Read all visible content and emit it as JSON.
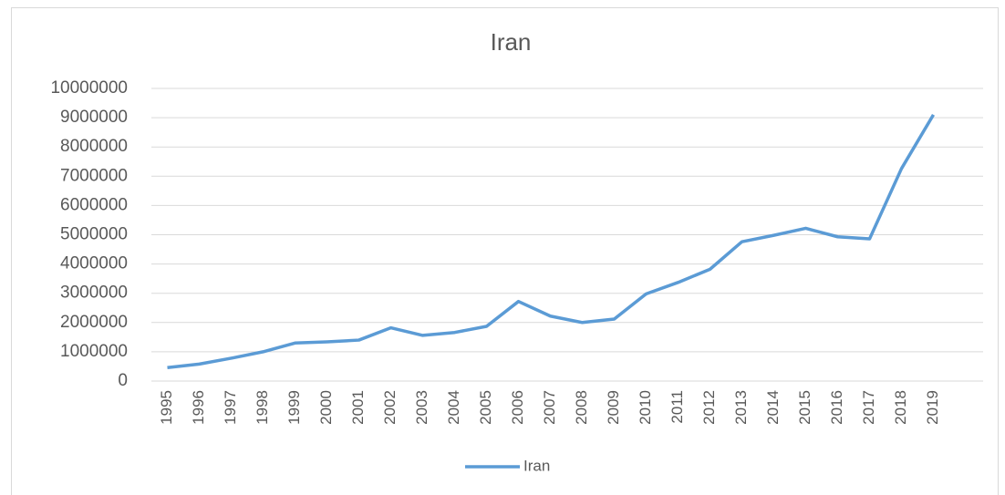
{
  "chart_data": {
    "type": "line",
    "title": "Iran",
    "categories": [
      "1995",
      "1996",
      "1997",
      "1998",
      "1999",
      "2000",
      "2001",
      "2002",
      "2003",
      "2004",
      "2005",
      "2006",
      "2007",
      "2008",
      "2009",
      "2010",
      "2011",
      "2012",
      "2013",
      "2014",
      "2015",
      "2016",
      "2017",
      "2018",
      "2019"
    ],
    "series": [
      {
        "name": "Iran",
        "color": "#5b9bd5",
        "values": [
          460000,
          580000,
          780000,
          1000000,
          1300000,
          1340000,
          1400000,
          1820000,
          1560000,
          1660000,
          1870000,
          2720000,
          2220000,
          2000000,
          2120000,
          2980000,
          3370000,
          3820000,
          4760000,
          4980000,
          5220000,
          4930000,
          4860000,
          7260000,
          9100000
        ]
      }
    ],
    "ylim": [
      0,
      10000000
    ],
    "yticks": [
      0,
      1000000,
      2000000,
      3000000,
      4000000,
      5000000,
      6000000,
      7000000,
      8000000,
      9000000,
      10000000
    ],
    "grid": true,
    "legend": "bottom"
  }
}
